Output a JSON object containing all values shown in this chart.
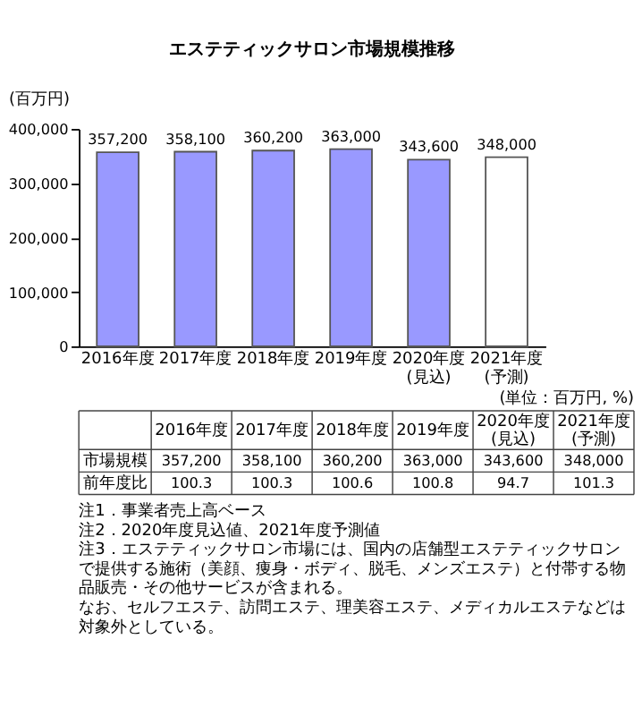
{
  "chart_data": {
    "type": "bar",
    "title": "エステティックサロン市場規模推移",
    "ylabel": "(百万円)",
    "categories": [
      "2016年度",
      "2017年度",
      "2018年度",
      "2019年度",
      "2020年度(見込)",
      "2021年度(予測)"
    ],
    "values": [
      357200,
      358100,
      360200,
      363000,
      343600,
      348000
    ],
    "value_labels": [
      "357,200",
      "358,100",
      "360,200",
      "363,000",
      "343,600",
      "348,000"
    ],
    "colors": [
      "#9999ff",
      "#9999ff",
      "#9999ff",
      "#9999ff",
      "#9999ff",
      "#ffffff"
    ],
    "ylim": [
      0,
      400000
    ],
    "yticks": [
      {
        "value": 0,
        "label": "0"
      },
      {
        "value": 100000,
        "label": "100,000"
      },
      {
        "value": 200000,
        "label": "200,000"
      },
      {
        "value": 300000,
        "label": "300,000"
      },
      {
        "value": 400000,
        "label": "400,000"
      }
    ],
    "grid": false,
    "annotations": [
      "(単位：百万円, %)",
      "市場規模",
      "前年度比",
      "100.3",
      "100.3",
      "100.6",
      "100.8",
      "94.7",
      "101.3",
      "注1．事業者売上高ベース",
      "注2．2020年度見込値、2021年度予測値",
      "注3．エステティックサロン市場には、国内の店舗型エステティックサロンで提供する施術（美顔、痩身・ボディ、脱毛、メンズエステ）と付帯する物品販売・その他サービスが含まれる。",
      "なお、セルフエステ、訪問エステ、理美容エステ、メディカルエステなどは対象外としている。"
    ]
  }
}
